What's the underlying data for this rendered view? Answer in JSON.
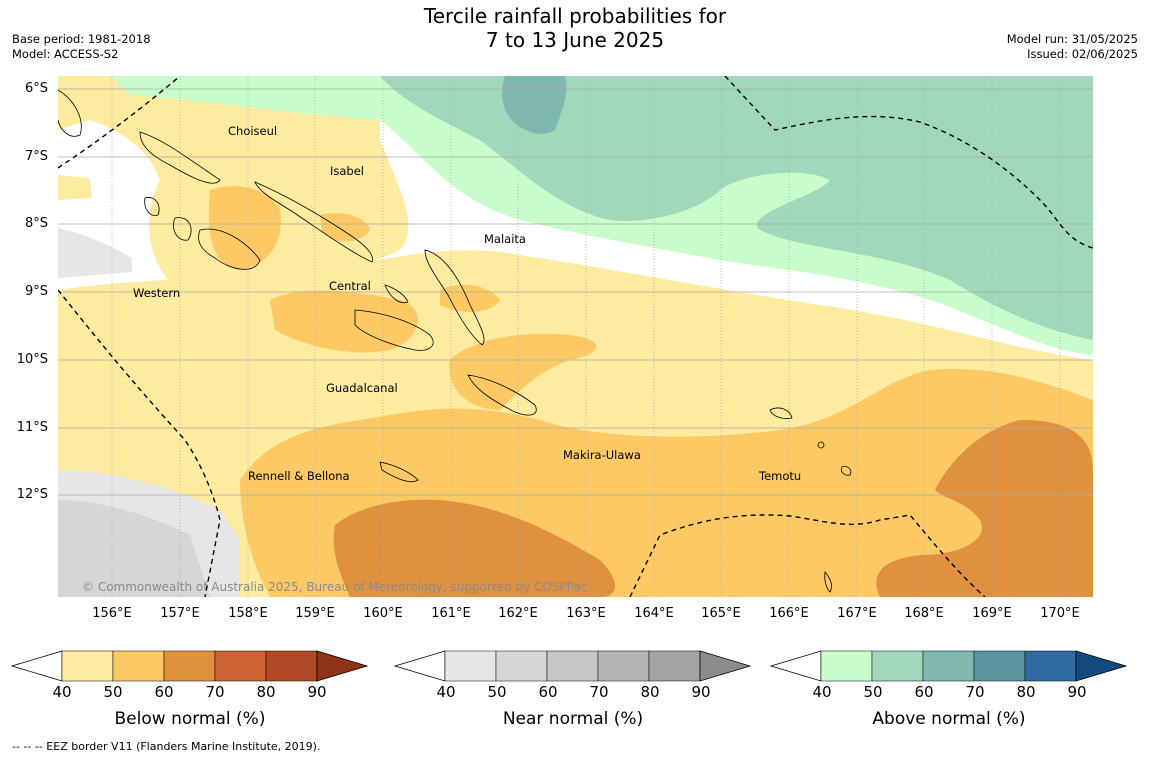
{
  "title_line1": "Tercile rainfall probabilities for",
  "title_line2": "7 to 13 June 2025",
  "meta_left": {
    "base_period": "Base period: 1981-2018",
    "model": "Model: ACCESS-S2"
  },
  "meta_right": {
    "model_run": "Model run: 31/05/2025",
    "issued": "Issued: 02/06/2025"
  },
  "lat_labels": [
    "6°S",
    "7°S",
    "8°S",
    "9°S",
    "10°S",
    "11°S",
    "12°S"
  ],
  "lon_labels": [
    "156°E",
    "157°E",
    "158°E",
    "159°E",
    "160°E",
    "161°E",
    "162°E",
    "163°E",
    "164°E",
    "165°E",
    "166°E",
    "167°E",
    "168°E",
    "169°E",
    "170°E"
  ],
  "places": [
    "Choiseul",
    "Isabel",
    "Malaita",
    "Central",
    "Western",
    "Guadalcanal",
    "Makira-Ulawa",
    "Rennell & Bellona",
    "Temotu"
  ],
  "copyright": "© Commonwealth of Australia 2025, Bureau of Meteorology, supported by COSPPac",
  "colorbars": {
    "below": {
      "title": "Below normal (%)",
      "ticks": [
        "40",
        "50",
        "60",
        "70",
        "80",
        "90"
      ],
      "colors": [
        "#fdeba0",
        "#fdc965",
        "#e09140",
        "#cd6232",
        "#b04a25",
        "#8e3418"
      ]
    },
    "near": {
      "title": "Near normal (%)",
      "ticks": [
        "40",
        "50",
        "60",
        "70",
        "80",
        "90"
      ],
      "colors": [
        "#e6e6e6",
        "#d6d6d6",
        "#c6c6c6",
        "#b5b5b5",
        "#a3a3a3",
        "#8c8c8c"
      ]
    },
    "above": {
      "title": "Above normal (%)",
      "ticks": [
        "40",
        "50",
        "60",
        "70",
        "80",
        "90"
      ],
      "colors": [
        "#c9fccb",
        "#a1d8bc",
        "#7fb8b0",
        "#5a94a0",
        "#2f6aa0",
        "#14497f"
      ]
    }
  },
  "footnote": "--  --  -- EEZ border V11 (Flanders Marine Institute, 2019)."
}
